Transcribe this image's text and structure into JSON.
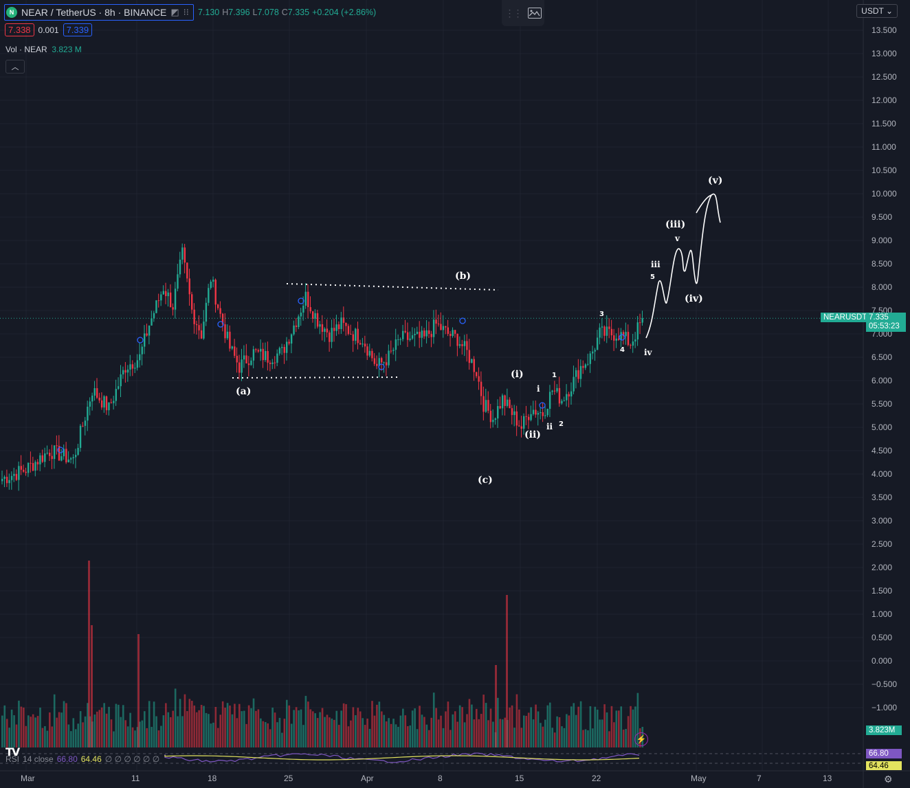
{
  "header": {
    "symbol": "NEAR / TetherUS · 8h · BINANCE",
    "coin_icon": "near-coin-icon",
    "ohlc": {
      "o_label": "O",
      "o": "7.130",
      "h_label": "H",
      "h": "7.396",
      "l_label": "L",
      "l": "7.078",
      "c_label": "C",
      "c": "7.335",
      "change": "+0.204 (+2.86%)"
    },
    "bid": "7.338",
    "spread": "0.001",
    "ask": "7.339",
    "vol_label": "Vol · NEAR",
    "vol_value": "3.823 M",
    "collapse_icon": "chevron-up-icon",
    "currency": "USDT"
  },
  "colors": {
    "up": "#22ab94",
    "down": "#f23645",
    "bg": "#161a25",
    "grid": "#1f2330",
    "drawing": "#ffffff",
    "rsi": "#7e57c2",
    "rsi_ma": "#e3e35f"
  },
  "price_axis": {
    "ticks": [
      "13.500",
      "13.000",
      "12.500",
      "12.000",
      "11.500",
      "11.000",
      "10.500",
      "10.000",
      "9.500",
      "9.000",
      "8.500",
      "8.000",
      "7.500",
      "7.000",
      "6.500",
      "6.000",
      "5.500",
      "5.000",
      "4.500",
      "4.000",
      "3.500",
      "3.000",
      "2.500",
      "2.000",
      "1.500",
      "1.000",
      "0.500",
      "0.000",
      "−0.500",
      "−1.000"
    ],
    "last_price": "7.335",
    "countdown": "05:53:23",
    "symbol_tag": "NEARUSDT",
    "volume_tag": "3.823M",
    "rsi_tag": "66.80",
    "rsi_ma_tag": "64.46"
  },
  "time_axis": [
    "Mar",
    "11",
    "18",
    "25",
    "Apr",
    "8",
    "15",
    "22",
    "May",
    "7",
    "13"
  ],
  "rsi": {
    "label": "RSI",
    "params": "14 close",
    "value": "66.80",
    "ma_value": "64.46",
    "extra": "∅ ∅ ∅ ∅ ∅ ∅"
  },
  "waves": {
    "a": "(a)",
    "b": "(b)",
    "c": "(c)",
    "w1": "(i)",
    "w2": "(ii)",
    "w3": "(iii)",
    "w4": "(iv)",
    "w5": "(v)",
    "sub_i": "i",
    "sub_ii": "ii",
    "sub_iii": "iii",
    "sub_iv": "iv",
    "sub_v": "v",
    "n1": "1",
    "n2": "2",
    "n3": "3",
    "n4": "4",
    "n5": "5"
  },
  "chart_data": {
    "type": "candlestick",
    "timeframe": "8h",
    "x_labels": [
      "Mar",
      "11",
      "18",
      "25",
      "Apr",
      "8",
      "15",
      "22",
      "May",
      "7",
      "13"
    ],
    "ylim": [
      -1.25,
      13.75
    ],
    "anchors": [
      {
        "i": 0,
        "p": 3.9
      },
      {
        "i": 10,
        "p": 4.1
      },
      {
        "i": 20,
        "p": 4.5
      },
      {
        "i": 30,
        "p": 4.3
      },
      {
        "i": 38,
        "p": 5.8
      },
      {
        "i": 45,
        "p": 5.4
      },
      {
        "i": 52,
        "p": 6.3
      },
      {
        "i": 58,
        "p": 6.5
      },
      {
        "i": 62,
        "p": 7.2
      },
      {
        "i": 68,
        "p": 8.0
      },
      {
        "i": 72,
        "p": 7.6
      },
      {
        "i": 76,
        "p": 8.7
      },
      {
        "i": 80,
        "p": 7.5
      },
      {
        "i": 84,
        "p": 7.0
      },
      {
        "i": 88,
        "p": 8.2
      },
      {
        "i": 92,
        "p": 7.4
      },
      {
        "i": 96,
        "p": 6.7
      },
      {
        "i": 100,
        "p": 6.3
      },
      {
        "i": 106,
        "p": 6.6
      },
      {
        "i": 112,
        "p": 6.5
      },
      {
        "i": 118,
        "p": 6.6
      },
      {
        "i": 124,
        "p": 7.3
      },
      {
        "i": 128,
        "p": 7.8
      },
      {
        "i": 133,
        "p": 7.3
      },
      {
        "i": 138,
        "p": 7.0
      },
      {
        "i": 143,
        "p": 7.2
      },
      {
        "i": 148,
        "p": 7.0
      },
      {
        "i": 152,
        "p": 6.9
      },
      {
        "i": 158,
        "p": 6.3
      },
      {
        "i": 163,
        "p": 6.5
      },
      {
        "i": 168,
        "p": 6.9
      },
      {
        "i": 172,
        "p": 6.9
      },
      {
        "i": 178,
        "p": 6.9
      },
      {
        "i": 183,
        "p": 7.2
      },
      {
        "i": 188,
        "p": 7.0
      },
      {
        "i": 192,
        "p": 6.9
      },
      {
        "i": 196,
        "p": 6.6
      },
      {
        "i": 200,
        "p": 6.2
      },
      {
        "i": 203,
        "p": 5.5
      },
      {
        "i": 207,
        "p": 5.2
      },
      {
        "i": 211,
        "p": 5.6
      },
      {
        "i": 215,
        "p": 5.3
      },
      {
        "i": 219,
        "p": 5.0
      },
      {
        "i": 223,
        "p": 5.4
      },
      {
        "i": 228,
        "p": 5.3
      },
      {
        "i": 232,
        "p": 5.8
      },
      {
        "i": 236,
        "p": 5.6
      },
      {
        "i": 240,
        "p": 5.9
      },
      {
        "i": 244,
        "p": 6.3
      },
      {
        "i": 248,
        "p": 6.5
      },
      {
        "i": 252,
        "p": 7.0
      },
      {
        "i": 256,
        "p": 7.0
      },
      {
        "i": 260,
        "p": 7.0
      },
      {
        "i": 265,
        "p": 6.8
      },
      {
        "i": 270,
        "p": 7.3
      }
    ],
    "last_close": 7.335,
    "volume_last": "3.823M",
    "rsi_last": 66.8,
    "rsi_ma_last": 64.46
  }
}
